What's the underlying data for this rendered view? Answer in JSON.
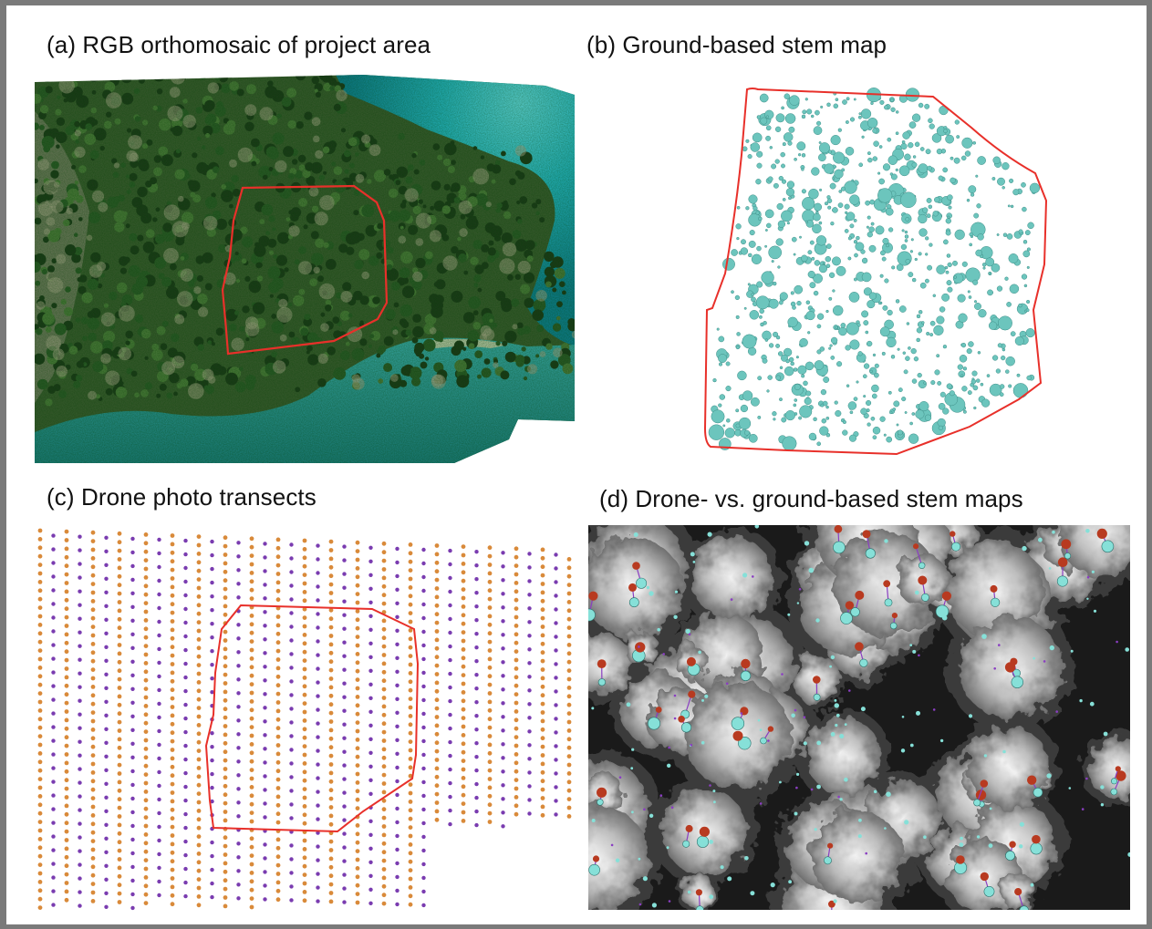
{
  "panels": {
    "a": {
      "title": "(a) RGB orthomosaic of project area"
    },
    "b": {
      "title": "(b) Ground-based stem map"
    },
    "c": {
      "title": "(c) Drone photo transects"
    },
    "d": {
      "title": "(d) Drone- vs. ground-based stem maps"
    }
  },
  "colors": {
    "frame": "#7a7a7a",
    "boundary": "#e8302a",
    "stem_fill": "#6cc5bd",
    "stem_stroke": "#3f8f88",
    "photo_orange": "#d98a3a",
    "photo_purple": "#7a3cb0",
    "drone_stem": "#b83a20",
    "ground_stem": "#86e0d8",
    "match_line": "#8a3ec2",
    "forest": "#2f4a24",
    "water": "#1fb8c4"
  },
  "icons": {
    "boundary": "boundary-polygon",
    "stem": "stem-circle"
  }
}
